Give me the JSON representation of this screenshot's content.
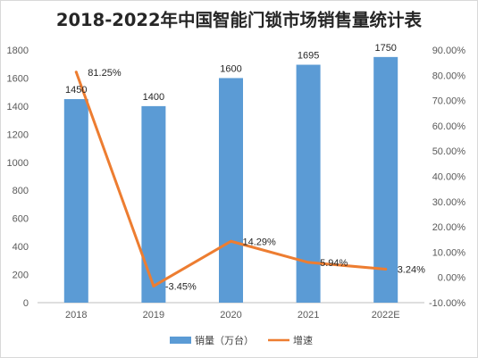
{
  "chart_data": {
    "type": "bar",
    "title": "2018-2022年中国智能门锁市场销售量统计表",
    "categories": [
      "2018",
      "2019",
      "2020",
      "2021",
      "2022E"
    ],
    "series": [
      {
        "name": "销量（万台）",
        "type": "bar",
        "axis": "left",
        "values": [
          1450,
          1400,
          1600,
          1695,
          1750
        ],
        "labels": [
          "1450",
          "1400",
          "1600",
          "1695",
          "1750"
        ],
        "color": "#5b9bd5"
      },
      {
        "name": "增速",
        "type": "line",
        "axis": "right",
        "values": [
          81.25,
          -3.45,
          14.29,
          5.94,
          3.24
        ],
        "labels": [
          "81.25%",
          "-3.45%",
          "14.29%",
          "5.94%",
          "3.24%"
        ],
        "color": "#ed7d31"
      }
    ],
    "y_left": {
      "ylim": [
        0,
        1800
      ],
      "ticks": [
        "0",
        "200",
        "400",
        "600",
        "800",
        "1000",
        "1200",
        "1400",
        "1600",
        "1800"
      ]
    },
    "y_right": {
      "ylim": [
        -10,
        90
      ],
      "ticks": [
        "-10.00%",
        "0.00%",
        "10.00%",
        "20.00%",
        "30.00%",
        "40.00%",
        "50.00%",
        "60.00%",
        "70.00%",
        "80.00%",
        "90.00%"
      ]
    },
    "grid": false,
    "legend": "bottom"
  }
}
